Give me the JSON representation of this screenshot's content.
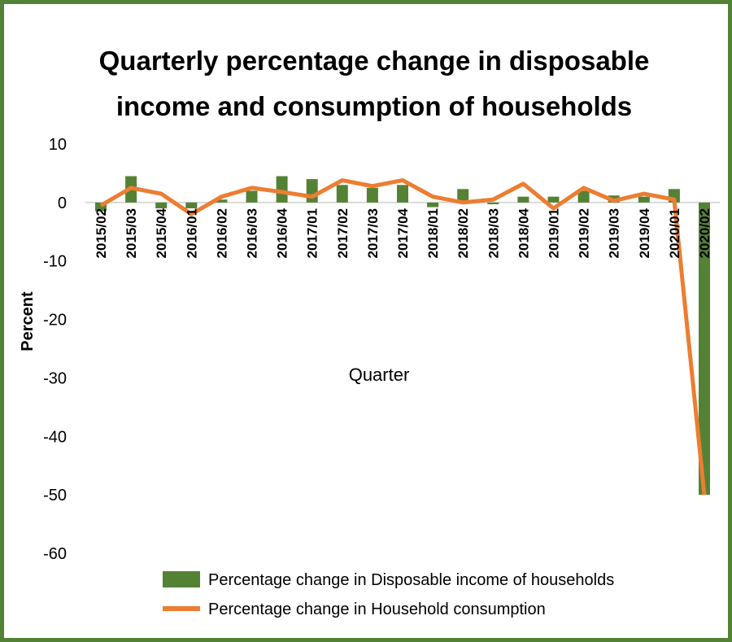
{
  "chart_data": {
    "type": "bar_line",
    "title": [
      "Quarterly percentage change in disposable",
      "income and consumption of households"
    ],
    "x_label": "Quarter",
    "y_label": "Percent",
    "categories": [
      "2015/02",
      "2015/03",
      "2015/04",
      "2016/01",
      "2016/02",
      "2016/03",
      "2016/04",
      "2017/01",
      "2017/02",
      "2017/03",
      "2017/04",
      "2018/01",
      "2018/02",
      "2018/03",
      "2018/04",
      "2019/01",
      "2019/02",
      "2019/03",
      "2019/04",
      "2020/01",
      "2020/02"
    ],
    "series": [
      {
        "name": "Percentage change in Disposable income of households",
        "type": "bar",
        "color": "#548235",
        "values": [
          -1.5,
          4.5,
          -1,
          -1,
          0.5,
          2,
          4.5,
          4,
          3,
          2.5,
          3,
          -0.8,
          2.3,
          -0.3,
          1,
          1,
          2,
          1.2,
          1,
          2.3,
          -50
        ]
      },
      {
        "name": "Percentage change in Household consumption",
        "type": "line",
        "color": "#ed7d31",
        "values": [
          -0.5,
          2.5,
          1.5,
          -2,
          1,
          2.5,
          1.8,
          1,
          3.8,
          2.8,
          3.8,
          1,
          0,
          0.5,
          3.2,
          -1,
          2.5,
          0.3,
          1.5,
          0.5,
          -50
        ]
      }
    ],
    "ylim": [
      -60,
      10
    ],
    "yticks": [
      -60,
      -50,
      -40,
      -30,
      -20,
      -10,
      0,
      10
    ]
  }
}
